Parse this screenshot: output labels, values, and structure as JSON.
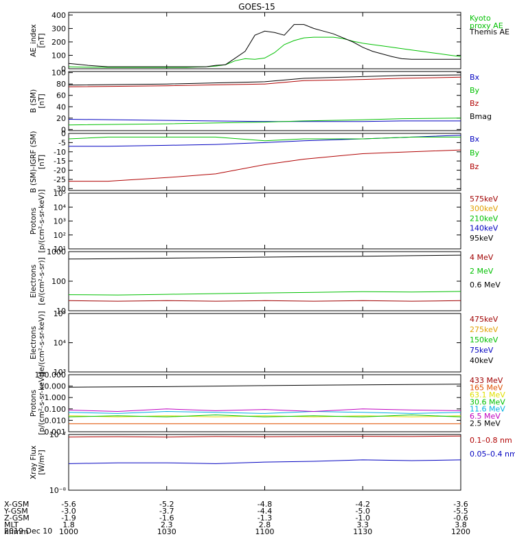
{
  "title": "GOES-15",
  "x_ticks": [
    "1000",
    "1030",
    "1100",
    "1130",
    "1200"
  ],
  "ephemeris": {
    "rows": [
      {
        "label": "X-GSM",
        "values": [
          "-5.6",
          "-5.2",
          "-4.8",
          "-4.2",
          "-3.6"
        ]
      },
      {
        "label": "Y-GSM",
        "values": [
          "-3.0",
          "-3.7",
          "-4.4",
          "-5.0",
          "-5.5"
        ]
      },
      {
        "label": "Z-GSM",
        "values": [
          "-1.9",
          "-1.6",
          "-1.3",
          "-1.0",
          "-0.6"
        ]
      },
      {
        "label": "MLT",
        "values": [
          "1.8",
          "2.3",
          "2.8",
          "3.3",
          "3.8"
        ]
      },
      {
        "label": "hhmm",
        "values": [
          "1000",
          "1030",
          "1100",
          "1130",
          "1200"
        ]
      }
    ],
    "date": "2019 Dec 10"
  },
  "colors": {
    "black": "#000000",
    "green": "#00c000",
    "blue": "#0000c0",
    "red": "#b00000",
    "orange": "#e0a000",
    "yellow": "#e0e000",
    "cyan": "#00b0e0",
    "magenta": "#c000c0",
    "darkred": "#a00000"
  },
  "chart_data": [
    {
      "type": "line",
      "ylabel_lines": [
        "AE_index",
        "[nT]"
      ],
      "scale": "linear",
      "ylim": [
        0,
        420
      ],
      "yticks": [
        "0",
        "100",
        "200",
        "300",
        "400"
      ],
      "ytick_values": [
        0,
        100,
        200,
        300,
        400
      ],
      "x": [
        10.0,
        10.1,
        10.2,
        10.3,
        10.4,
        10.5,
        10.55,
        10.6,
        10.7,
        10.75,
        10.8,
        10.85,
        10.9,
        10.95,
        11.0,
        11.05,
        11.1,
        11.15,
        11.2,
        11.25,
        11.3,
        11.35,
        11.4,
        11.45,
        11.5,
        11.55,
        11.6,
        11.65,
        11.7,
        11.75,
        11.8,
        11.85,
        11.9,
        11.95,
        12.0
      ],
      "series": [
        {
          "name": "Kyoto proxy AE",
          "label_lines": [
            "Kyoto",
            "proxy AE"
          ],
          "color": "#00c000",
          "values": [
            15,
            12,
            10,
            10,
            10,
            10,
            10,
            10,
            15,
            20,
            30,
            60,
            75,
            70,
            80,
            120,
            180,
            210,
            230,
            235,
            235,
            235,
            225,
            205,
            190,
            180,
            170,
            160,
            150,
            140,
            130,
            120,
            110,
            100,
            90
          ]
        },
        {
          "name": "Themis AE",
          "label_lines": [
            "Themis AE"
          ],
          "color": "#000000",
          "values": [
            40,
            25,
            15,
            15,
            15,
            15,
            15,
            15,
            15,
            25,
            30,
            80,
            130,
            250,
            280,
            270,
            250,
            330,
            330,
            300,
            280,
            260,
            230,
            200,
            160,
            130,
            110,
            90,
            75,
            70,
            70,
            70,
            70,
            70,
            70
          ]
        }
      ]
    },
    {
      "type": "line",
      "ylabel_lines": [
        "B (SM)",
        "[nT]"
      ],
      "scale": "linear",
      "ylim": [
        -2,
        102
      ],
      "yticks": [
        "0",
        "20",
        "40",
        "60",
        "80",
        "100"
      ],
      "ytick_values": [
        0,
        20,
        40,
        60,
        80,
        100
      ],
      "x": [
        10.0,
        10.5,
        11.0,
        11.2,
        11.5,
        11.7,
        12.0
      ],
      "series": [
        {
          "name": "Bx",
          "label_lines": [
            "Bx"
          ],
          "color": "#0000c0",
          "values": [
            18,
            16,
            14,
            14,
            14,
            15,
            15
          ]
        },
        {
          "name": "By",
          "label_lines": [
            "By"
          ],
          "color": "#00c000",
          "values": [
            8,
            10,
            13,
            15,
            17,
            19,
            20
          ]
        },
        {
          "name": "Bz",
          "label_lines": [
            "Bz"
          ],
          "color": "#b00000",
          "values": [
            75,
            77,
            80,
            86,
            88,
            90,
            92
          ]
        },
        {
          "name": "Bmag",
          "label_lines": [
            "Bmag"
          ],
          "color": "#000000",
          "values": [
            78,
            80,
            84,
            90,
            93,
            95,
            96
          ]
        }
      ]
    },
    {
      "type": "line",
      "ylabel_lines": [
        "B (SM)-IGRF (SM)",
        "[nT]"
      ],
      "scale": "linear",
      "ylim": [
        -31,
        0
      ],
      "yticks": [
        "-30",
        "-25",
        "-20",
        "-15",
        "-10",
        "-5",
        "0"
      ],
      "ytick_values": [
        -30,
        -25,
        -20,
        -15,
        -10,
        -5,
        0
      ],
      "x": [
        10.0,
        10.2,
        10.5,
        10.75,
        11.0,
        11.2,
        11.5,
        11.75,
        12.0
      ],
      "series": [
        {
          "name": "Bx",
          "label_lines": [
            "Bx"
          ],
          "color": "#0000c0",
          "values": [
            -7,
            -7,
            -6.5,
            -6,
            -5,
            -4,
            -3,
            -2,
            -1
          ]
        },
        {
          "name": "By",
          "label_lines": [
            "By"
          ],
          "color": "#00c000",
          "values": [
            -3,
            -2,
            -2,
            -2,
            -4,
            -3,
            -3,
            -2,
            -2
          ]
        },
        {
          "name": "Bz",
          "label_lines": [
            "Bz"
          ],
          "color": "#b00000",
          "values": [
            -26,
            -26,
            -24,
            -22,
            -17,
            -14,
            -11,
            -10,
            -9
          ]
        }
      ]
    },
    {
      "type": "line",
      "ylabel_lines": [
        "Protons",
        "[p/(cm²-s-sr-keV)]"
      ],
      "scale": "log",
      "ylim": [
        10,
        100000
      ],
      "yticks": [
        "10¹",
        "10²",
        "10³",
        "10⁴",
        "10⁵"
      ],
      "ytick_values": [
        10,
        100,
        1000,
        10000,
        100000
      ],
      "x": [],
      "series": [
        {
          "name": "575keV",
          "label_lines": [
            "575keV"
          ],
          "color": "#a00000",
          "values": []
        },
        {
          "name": "300keV",
          "label_lines": [
            "300keV"
          ],
          "color": "#e0a000",
          "values": []
        },
        {
          "name": "210keV",
          "label_lines": [
            "210keV"
          ],
          "color": "#00c000",
          "values": []
        },
        {
          "name": "140keV",
          "label_lines": [
            "140keV"
          ],
          "color": "#0000c0",
          "values": []
        },
        {
          "name": "95keV",
          "label_lines": [
            "95keV"
          ],
          "color": "#000000",
          "values": []
        }
      ]
    },
    {
      "type": "line",
      "ylabel_lines": [
        "Electrons",
        "[e/(cm²-s-sr)]"
      ],
      "scale": "log",
      "ylim": [
        10,
        1000
      ],
      "yticks": [
        "10",
        "100",
        "1000"
      ],
      "ytick_values": [
        10,
        100,
        1000
      ],
      "x": [
        10.0,
        10.25,
        10.5,
        10.75,
        11.0,
        11.25,
        11.5,
        11.75,
        12.0
      ],
      "series": [
        {
          "name": "4 MeV",
          "label_lines": [
            "4 MeV"
          ],
          "color": "#a00000",
          "values": [
            22,
            21,
            22,
            21,
            22,
            21,
            22,
            21,
            22
          ]
        },
        {
          "name": "2 MeV",
          "label_lines": [
            "2 MeV"
          ],
          "color": "#00c000",
          "values": [
            35,
            34,
            36,
            38,
            40,
            42,
            44,
            43,
            45
          ]
        },
        {
          "name": "0.6 MeV",
          "label_lines": [
            "0.6 MeV"
          ],
          "color": "#000000",
          "values": [
            560,
            580,
            600,
            620,
            650,
            680,
            700,
            730,
            760
          ]
        }
      ]
    },
    {
      "type": "line",
      "ylabel_lines": [
        "Electrons",
        "[e/(cm²-s-sr-keV)]"
      ],
      "scale": "log",
      "ylim": [
        1000,
        100000
      ],
      "yticks": [
        "10³",
        "10⁴",
        "10⁵"
      ],
      "ytick_values": [
        1000,
        10000,
        100000
      ],
      "x": [],
      "series": [
        {
          "name": "475keV",
          "label_lines": [
            "475keV"
          ],
          "color": "#a00000",
          "values": []
        },
        {
          "name": "275keV",
          "label_lines": [
            "275keV"
          ],
          "color": "#e0a000",
          "values": []
        },
        {
          "name": "150keV",
          "label_lines": [
            "150keV"
          ],
          "color": "#00c000",
          "values": []
        },
        {
          "name": "75keV",
          "label_lines": [
            "75keV"
          ],
          "color": "#0000c0",
          "values": []
        },
        {
          "name": "40keV",
          "label_lines": [
            "40keV"
          ],
          "color": "#000000",
          "values": []
        }
      ]
    },
    {
      "type": "line",
      "ylabel_lines": [
        "Protons",
        "[p/(cm²-s-sr-keV)]"
      ],
      "scale": "log",
      "ylim": [
        0.001,
        100
      ],
      "yticks": [
        "0.001",
        "0.010",
        "0.100",
        "1.000",
        "10.000",
        "100.000"
      ],
      "ytick_values": [
        0.001,
        0.01,
        0.1,
        1,
        10,
        100
      ],
      "x": [
        10.0,
        10.25,
        10.5,
        10.75,
        11.0,
        11.25,
        11.5,
        11.75,
        12.0
      ],
      "series": [
        {
          "name": "433 MeV",
          "label_lines": [
            "433 MeV"
          ],
          "color": "#a00000",
          "values": [
            null,
            null,
            null,
            null,
            null,
            null,
            null,
            null,
            null
          ]
        },
        {
          "name": "165 MeV",
          "label_lines": [
            "165 MeV"
          ],
          "color": "#e05000",
          "values": [
            0.005,
            0.005,
            0.005,
            0.005,
            0.005,
            0.005,
            0.005,
            0.005,
            0.005
          ]
        },
        {
          "name": "63.1 MeV",
          "label_lines": [
            "63.1 MeV"
          ],
          "color": "#e0e000",
          "values": [
            0.025,
            0.02,
            0.025,
            0.02,
            0.025,
            0.02,
            0.025,
            0.02,
            0.025
          ]
        },
        {
          "name": "30.6 MeV",
          "label_lines": [
            "30.6 MeV"
          ],
          "color": "#00c000",
          "values": [
            0.02,
            0.025,
            0.02,
            0.03,
            0.02,
            0.025,
            0.02,
            0.03,
            0.02
          ]
        },
        {
          "name": "11.6 MeV",
          "label_lines": [
            "11.6 MeV"
          ],
          "color": "#00b0e0",
          "values": [
            0.05,
            0.04,
            0.06,
            0.05,
            0.04,
            0.06,
            0.05,
            0.04,
            0.05
          ]
        },
        {
          "name": "6.5 MeV",
          "label_lines": [
            "6.5 MeV"
          ],
          "color": "#c000c0",
          "values": [
            0.08,
            0.06,
            0.1,
            0.07,
            0.09,
            0.06,
            0.1,
            0.08,
            0.07
          ]
        },
        {
          "name": "2.5 MeV",
          "label_lines": [
            "2.5 MeV"
          ],
          "color": "#000000",
          "values": [
            8,
            8.5,
            9,
            10,
            11,
            12,
            13,
            14,
            15
          ]
        }
      ]
    },
    {
      "type": "line",
      "ylabel_lines": [
        "Xray Flux",
        "[W/m²]"
      ],
      "scale": "log",
      "ylim": [
        1e-08,
        1e-07
      ],
      "yticks": [
        "10⁻⁸",
        "10⁻⁷"
      ],
      "ytick_values": [
        1e-08,
        1e-07
      ],
      "x": [
        10.0,
        10.25,
        10.5,
        10.75,
        11.0,
        11.25,
        11.5,
        11.75,
        12.0
      ],
      "series": [
        {
          "name": "0.1-0.8 nm",
          "label_lines": [
            "0.1–0.8 nm"
          ],
          "color": "#b00000",
          "values": [
            9e-08,
            9.1e-08,
            9e-08,
            9.2e-08,
            9.1e-08,
            9.2e-08,
            9.3e-08,
            9.2e-08,
            9.4e-08
          ]
        },
        {
          "name": "0.05-0.4 nm",
          "label_lines": [
            "0.05–0.4 nm"
          ],
          "color": "#0000c0",
          "values": [
            3e-08,
            3.1e-08,
            3.1e-08,
            3e-08,
            3.2e-08,
            3.3e-08,
            3.5e-08,
            3.4e-08,
            3.5e-08
          ]
        }
      ]
    }
  ]
}
